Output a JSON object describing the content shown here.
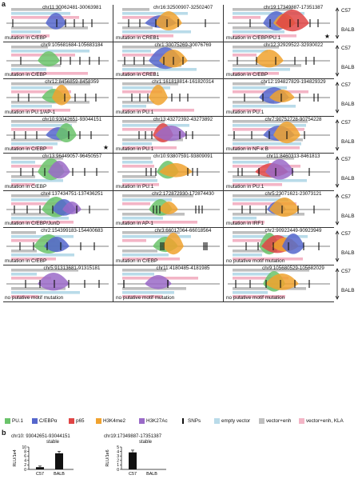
{
  "panel_a_label": "a",
  "panel_b_label": "b",
  "side_labels": {
    "c57": "C57",
    "balb": "BALB"
  },
  "colors": {
    "pu1": "#6ac36a",
    "cebp": "#5566cc",
    "p65": "#e04545",
    "h3k4me2": "#f0a22e",
    "h3k27ac": "#9a6ac8",
    "snps": "#111111",
    "empty": "#b9dbe9",
    "venh": "#bfbfbf",
    "kla": "#f3b5c6"
  },
  "cells": [
    {
      "coord": "chr11:30062481-30063981",
      "note": "mutation in C/EBP",
      "star": "",
      "peaks": [
        "cebp"
      ]
    },
    {
      "coord": "chr16:32500907-32502407",
      "note": "mutation in CREB1",
      "star": "",
      "peaks": [
        "cebp",
        "h3k4me2"
      ]
    },
    {
      "coord": "chr19:17349887-17351387",
      "note": "mutation in C/EBP/PU.1",
      "star": "★",
      "peaks": [
        "cebp",
        "h3k4me2",
        "p65"
      ]
    },
    {
      "coord": "chr9:105681684-105683184",
      "note": "mutation in C/EBP",
      "star": "",
      "peaks": [
        "pu1"
      ]
    },
    {
      "coord": "chr1:30075269-30076769",
      "note": "mutation in CREB1",
      "star": "",
      "peaks": [
        "cebp",
        "h3k4me2"
      ]
    },
    {
      "coord": "chr12:32929522-32930022",
      "note": "mutation in C/EBP",
      "star": "",
      "peaks": [
        "h3k4me2"
      ]
    },
    {
      "coord": "chr12:8456859-8458359",
      "note": "mutation in PU.1/AP-1",
      "star": "",
      "peaks": [
        "pu1",
        "h3k4me2"
      ]
    },
    {
      "coord": "chr1:161818814-161820314",
      "note": "mutation in PU.1",
      "star": "",
      "peaks": [
        "h3k4me2"
      ]
    },
    {
      "coord": "chr12:194827829-194829329",
      "note": "mutation in PU.1",
      "star": "",
      "peaks": [
        "cebp",
        "h3k4me2"
      ]
    },
    {
      "coord": "chr10:93042651-93044151",
      "note": "mutation in C/EBP",
      "star": "★",
      "peaks": [
        "cebp",
        "pu1"
      ]
    },
    {
      "coord": "chr13:43272392-43273892",
      "note": "mutation in PU.1",
      "star": "",
      "peaks": [
        "p65",
        "h3k27ac"
      ]
    },
    {
      "coord": "chr7:90752728-90754228",
      "note": "mutation in NF-κ B",
      "star": "",
      "peaks": [
        "cebp",
        "h3k4me2"
      ]
    },
    {
      "coord": "chr13:96449057-96450557",
      "note": "mutation in C/EBP",
      "star": "",
      "peaks": [
        "pu1",
        "h3k27ac"
      ]
    },
    {
      "coord": "chr10:93807591-93809091",
      "note": "mutation in PU.1",
      "star": "",
      "peaks": [
        "pu1",
        "h3k4me2"
      ]
    },
    {
      "coord": "chr11:8460313-8461813",
      "note": "mutation in PU.1",
      "star": "",
      "peaks": [
        "p65",
        "h3k27ac"
      ]
    },
    {
      "coord": "chr4:137434751-137436251",
      "note": "mutation in C/EBP/JunD",
      "star": "",
      "peaks": [
        "pu1",
        "cebp",
        "h3k27ac"
      ]
    },
    {
      "coord": "chr2:172872930-172874430",
      "note": "mutation in AP-1",
      "star": "",
      "peaks": [
        "pu1",
        "h3k4me2"
      ]
    },
    {
      "coord": "chr5:23071621-23073121",
      "note": "mutation in IRF1",
      "star": "",
      "peaks": [
        "cebp",
        "h3k4me2"
      ]
    },
    {
      "coord": "chr2:154399183-154400683",
      "note": "mutation in C/EBP",
      "star": "",
      "peaks": [
        "pu1",
        "cebp"
      ]
    },
    {
      "coord": "chr3:66017064-66018564",
      "note": "mutation in C/EBP",
      "star": "",
      "peaks": [
        "pu1",
        "h3k4me2"
      ]
    },
    {
      "coord": "chr2:90922449-90923949",
      "note": "no putative motif mutation",
      "star": "",
      "peaks": [
        "pu1",
        "p65",
        "h3k4me2",
        "cebp"
      ]
    },
    {
      "coord": "chr5:91313681-91315181",
      "note": "no putative motif mutation",
      "star": "",
      "peaks": [
        "h3k27ac"
      ]
    },
    {
      "coord": "chr11:4180485-4181985",
      "note": "no putative motif mutation",
      "star": "",
      "peaks": [
        "h3k27ac"
      ]
    },
    {
      "coord": "chr9:105680529-105682029",
      "note": "no putative motif mutation",
      "star": "",
      "peaks": [
        "pu1",
        "h3k4me2"
      ]
    }
  ],
  "legend": [
    {
      "key": "pu1",
      "label": "PU.1"
    },
    {
      "key": "cebp",
      "label": "C/EBPα"
    },
    {
      "key": "p65",
      "label": "p65"
    },
    {
      "key": "h3k4me2",
      "label": "H3K4me2"
    },
    {
      "key": "h3k27ac",
      "label": "H3K27Ac"
    },
    {
      "key": "snps",
      "label": "SNPs"
    },
    {
      "key": "empty",
      "label": "empty vector"
    },
    {
      "key": "venh",
      "label": "vector+enh"
    },
    {
      "key": "kla",
      "label": "vector+enh, KLA"
    }
  ],
  "chart_data": [
    {
      "type": "bar",
      "title": "chr10: 93042651-93044151",
      "subtitle": "stable",
      "categories": [
        "C57",
        "BALB"
      ],
      "values": [
        1.0,
        7.2
      ],
      "errors": [
        0.5,
        0.9
      ],
      "ylabel": "RLU/1e4",
      "ylim": [
        0,
        10
      ],
      "yticks": [
        0,
        2,
        4,
        6,
        8,
        10
      ]
    },
    {
      "type": "bar",
      "title": "chr19:17349887-17351387",
      "subtitle": "stable",
      "categories": [
        "C57",
        "BALB"
      ],
      "values": [
        3.8,
        0.0
      ],
      "errors": [
        0.5,
        0.0
      ],
      "ylabel": "RLU/1e6",
      "ylim": [
        0,
        5
      ],
      "yticks": [
        0,
        1,
        2,
        3,
        4,
        5
      ]
    }
  ]
}
